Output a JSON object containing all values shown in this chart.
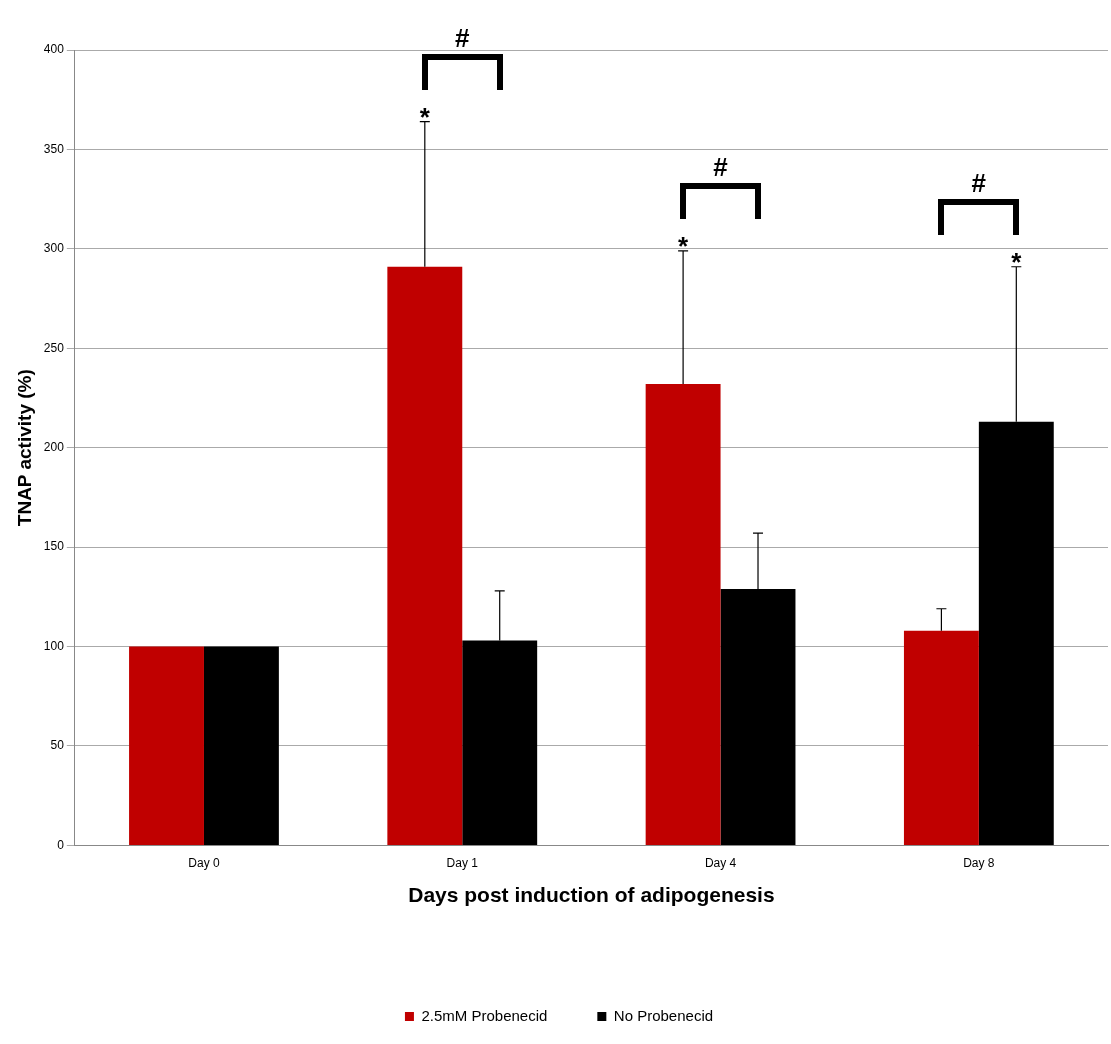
{
  "chart_data": {
    "type": "bar",
    "xlabel": "Days post induction of adipogenesis",
    "ylabel": "TNAP activity (%)",
    "categories": [
      "Day 0",
      "Day 1",
      "Day 4",
      "Day 8"
    ],
    "series": [
      {
        "name": "2.5mM Probenecid",
        "color": "#c00000",
        "values": [
          100,
          291,
          232,
          108
        ],
        "errors": [
          null,
          [
            291,
            364
          ],
          [
            232,
            299
          ],
          [
            108,
            119
          ]
        ]
      },
      {
        "name": "No Probenecid",
        "color": "#000000",
        "values": [
          100,
          103,
          129,
          213
        ],
        "errors": [
          null,
          [
            103,
            128
          ],
          [
            129,
            157
          ],
          [
            213,
            291
          ]
        ]
      }
    ],
    "ylim": [
      0,
      400
    ],
    "yticks": [
      0,
      50,
      100,
      150,
      200,
      250,
      300,
      350,
      400
    ],
    "grid": "y",
    "legend": "bottom",
    "annotations": [
      "*",
      "#",
      "*",
      "#",
      "*",
      "#"
    ]
  }
}
